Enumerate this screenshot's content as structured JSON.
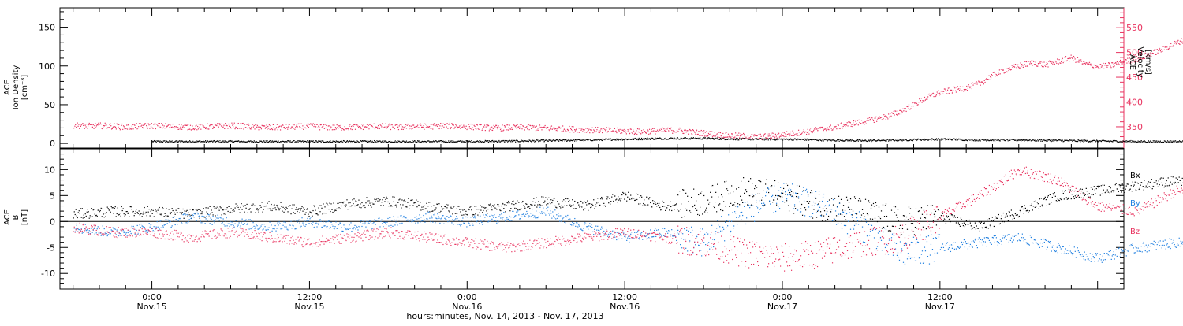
{
  "colors": {
    "black": "#000000",
    "pink": "#e8335f",
    "blue": "#1f7fe0"
  },
  "xaxis": {
    "ticks": [
      {
        "time": "0:00",
        "date": "Nov.15"
      },
      {
        "time": "12:00",
        "date": "Nov.15"
      },
      {
        "time": "0:00",
        "date": "Nov.16"
      },
      {
        "time": "12:00",
        "date": "Nov.16"
      },
      {
        "time": "0:00",
        "date": "Nov.17"
      },
      {
        "time": "12:00",
        "date": "Nov.17"
      }
    ],
    "title": "hours:minutes, Nov. 14, 2013 - Nov. 17, 2013"
  },
  "chart_data": [
    {
      "type": "scatter",
      "ylabel_left": [
        "ACE",
        "Ion Density",
        "[cm⁻³]"
      ],
      "ylabel_right": [
        "ACE",
        "Velocity",
        "[km/s]"
      ],
      "left_ticks": [
        "0",
        "50",
        "100",
        "150"
      ],
      "right_ticks": [
        "350",
        "400",
        "450",
        "500",
        "550"
      ],
      "ylim_left": [
        -6,
        175
      ],
      "ylim_right": [
        307,
        590
      ],
      "series": [
        {
          "axis": "left",
          "color": "black",
          "x": [
            0,
            6,
            12,
            18,
            24,
            30,
            33,
            36,
            39,
            42,
            45,
            48,
            51,
            54,
            57,
            60,
            63,
            66,
            70,
            75,
            80,
            85,
            90,
            95,
            100,
            104
          ],
          "y": [
            3,
            3,
            3,
            3,
            3,
            4,
            5,
            6,
            7,
            7,
            6,
            6,
            5,
            4,
            5,
            6,
            5,
            5,
            4,
            3,
            3,
            3,
            3,
            3,
            3,
            3
          ]
        },
        {
          "axis": "right",
          "color": "pink",
          "x": [
            -6,
            -5,
            -4,
            -3,
            -2,
            -1,
            0,
            1,
            2,
            3,
            4,
            5,
            6,
            7,
            8,
            9,
            10,
            11,
            12,
            13,
            14,
            15,
            16,
            17,
            18,
            19,
            20,
            21,
            22,
            23,
            24,
            25,
            26,
            27,
            28,
            29,
            30,
            31,
            32,
            33,
            34,
            35,
            36,
            37,
            38,
            39,
            40,
            41,
            42,
            43,
            44,
            45,
            46,
            47,
            48,
            49,
            50,
            51,
            52,
            53,
            54,
            55,
            56,
            57,
            58,
            59,
            60,
            61,
            62,
            63,
            64,
            65,
            66,
            67,
            68,
            69,
            70,
            71,
            72,
            73,
            74,
            75,
            76,
            77,
            78,
            79,
            80,
            81,
            82,
            83,
            84,
            85,
            86,
            87,
            88,
            89,
            90,
            91,
            92,
            93,
            94,
            95,
            96,
            97,
            98,
            99,
            100,
            101,
            102,
            103,
            104,
            105,
            106,
            107,
            108,
            109,
            110,
            111,
            112,
            113,
            114,
            115,
            116,
            117,
            118,
            119,
            120,
            121,
            122,
            123,
            124,
            125,
            126
          ],
          "y": [
            354,
            352,
            353,
            352,
            350,
            352,
            353,
            352,
            351,
            350,
            351,
            352,
            353,
            352,
            350,
            349,
            350,
            351,
            352,
            350,
            349,
            350,
            351,
            352,
            351,
            350,
            352,
            351,
            353,
            352,
            351,
            350,
            348,
            349,
            350,
            349,
            348,
            347,
            346,
            345,
            344,
            343,
            342,
            341,
            342,
            343,
            344,
            340,
            338,
            335,
            333,
            332,
            330,
            332,
            335,
            338,
            342,
            346,
            350,
            356,
            360,
            366,
            372,
            382,
            396,
            410,
            420,
            425,
            430,
            438,
            455,
            466,
            474,
            480,
            476,
            483,
            490,
            478,
            472,
            475,
            482,
            488,
            498,
            508,
            520,
            530,
            536,
            540,
            533,
            531,
            524,
            529,
            525,
            528,
            534,
            535,
            522,
            520,
            522,
            531,
            532,
            538,
            543,
            537,
            540,
            539,
            537,
            533,
            538,
            535,
            532,
            527,
            536,
            535,
            532,
            520,
            514,
            512,
            509,
            507,
            505,
            503,
            502,
            504,
            506,
            510,
            515,
            523,
            526,
            531,
            531,
            531,
            531
          ]
        }
      ]
    },
    {
      "type": "scatter",
      "ylabel_left": [
        "ACE",
        "B",
        "[nT]"
      ],
      "left_ticks": [
        "-10",
        "-5",
        "0",
        "5",
        "10"
      ],
      "ylim_left": [
        -13,
        14
      ],
      "legend": [
        "Bx",
        "By",
        "Bz"
      ],
      "series": [
        {
          "name": "Bx",
          "color": "black",
          "x": [
            -6,
            -3,
            0,
            3,
            6,
            9,
            12,
            15,
            18,
            21,
            24,
            27,
            30,
            33,
            36,
            39,
            42,
            45,
            48,
            51,
            54,
            57,
            60,
            63,
            66,
            69,
            72,
            75,
            78,
            81,
            84,
            87,
            90,
            93,
            96,
            99,
            102,
            104
          ],
          "y": [
            1.5,
            2,
            2,
            1.5,
            2.5,
            3,
            2,
            3.5,
            4,
            3,
            2,
            3,
            4,
            3,
            5,
            3,
            4,
            6,
            5,
            3,
            2,
            0,
            1,
            -1,
            2,
            5,
            6,
            7,
            8,
            4,
            3,
            2,
            3,
            2,
            3,
            2,
            1,
            0
          ]
        },
        {
          "name": "By",
          "color": "blue",
          "x": [
            -6,
            -3,
            0,
            3,
            6,
            9,
            12,
            15,
            18,
            21,
            24,
            27,
            30,
            33,
            36,
            39,
            42,
            45,
            48,
            51,
            54,
            57,
            60,
            63,
            66,
            69,
            72,
            75,
            78,
            81,
            84,
            87,
            90,
            93,
            96,
            99,
            102,
            104
          ],
          "y": [
            -1,
            -2,
            -1,
            1,
            0,
            -1,
            0,
            -1,
            0,
            1,
            0,
            1,
            2,
            -1,
            -3,
            -2,
            -4,
            2,
            5,
            3,
            -1,
            -6,
            -5,
            -4,
            -3,
            -5,
            -7,
            -5,
            -4,
            -5,
            -6,
            -5,
            -4,
            -3,
            -2,
            -1,
            0,
            0
          ]
        },
        {
          "name": "Bz",
          "color": "pink",
          "x": [
            -6,
            -3,
            0,
            3,
            6,
            9,
            12,
            15,
            18,
            21,
            24,
            27,
            30,
            33,
            36,
            39,
            42,
            45,
            48,
            51,
            54,
            57,
            60,
            63,
            66,
            69,
            72,
            75,
            78,
            81,
            84,
            87,
            90,
            93,
            96,
            99,
            102,
            104
          ],
          "y": [
            -1,
            -2,
            -2,
            -3,
            -2,
            -3,
            -4,
            -3,
            -2,
            -3,
            -4,
            -5,
            -4,
            -3,
            -2,
            -3,
            -4,
            -6,
            -7,
            -6,
            -4,
            -3,
            1,
            5,
            10,
            8,
            3,
            2,
            6,
            4,
            -1,
            2,
            1,
            0,
            -1,
            2,
            1,
            0
          ]
        }
      ]
    }
  ]
}
